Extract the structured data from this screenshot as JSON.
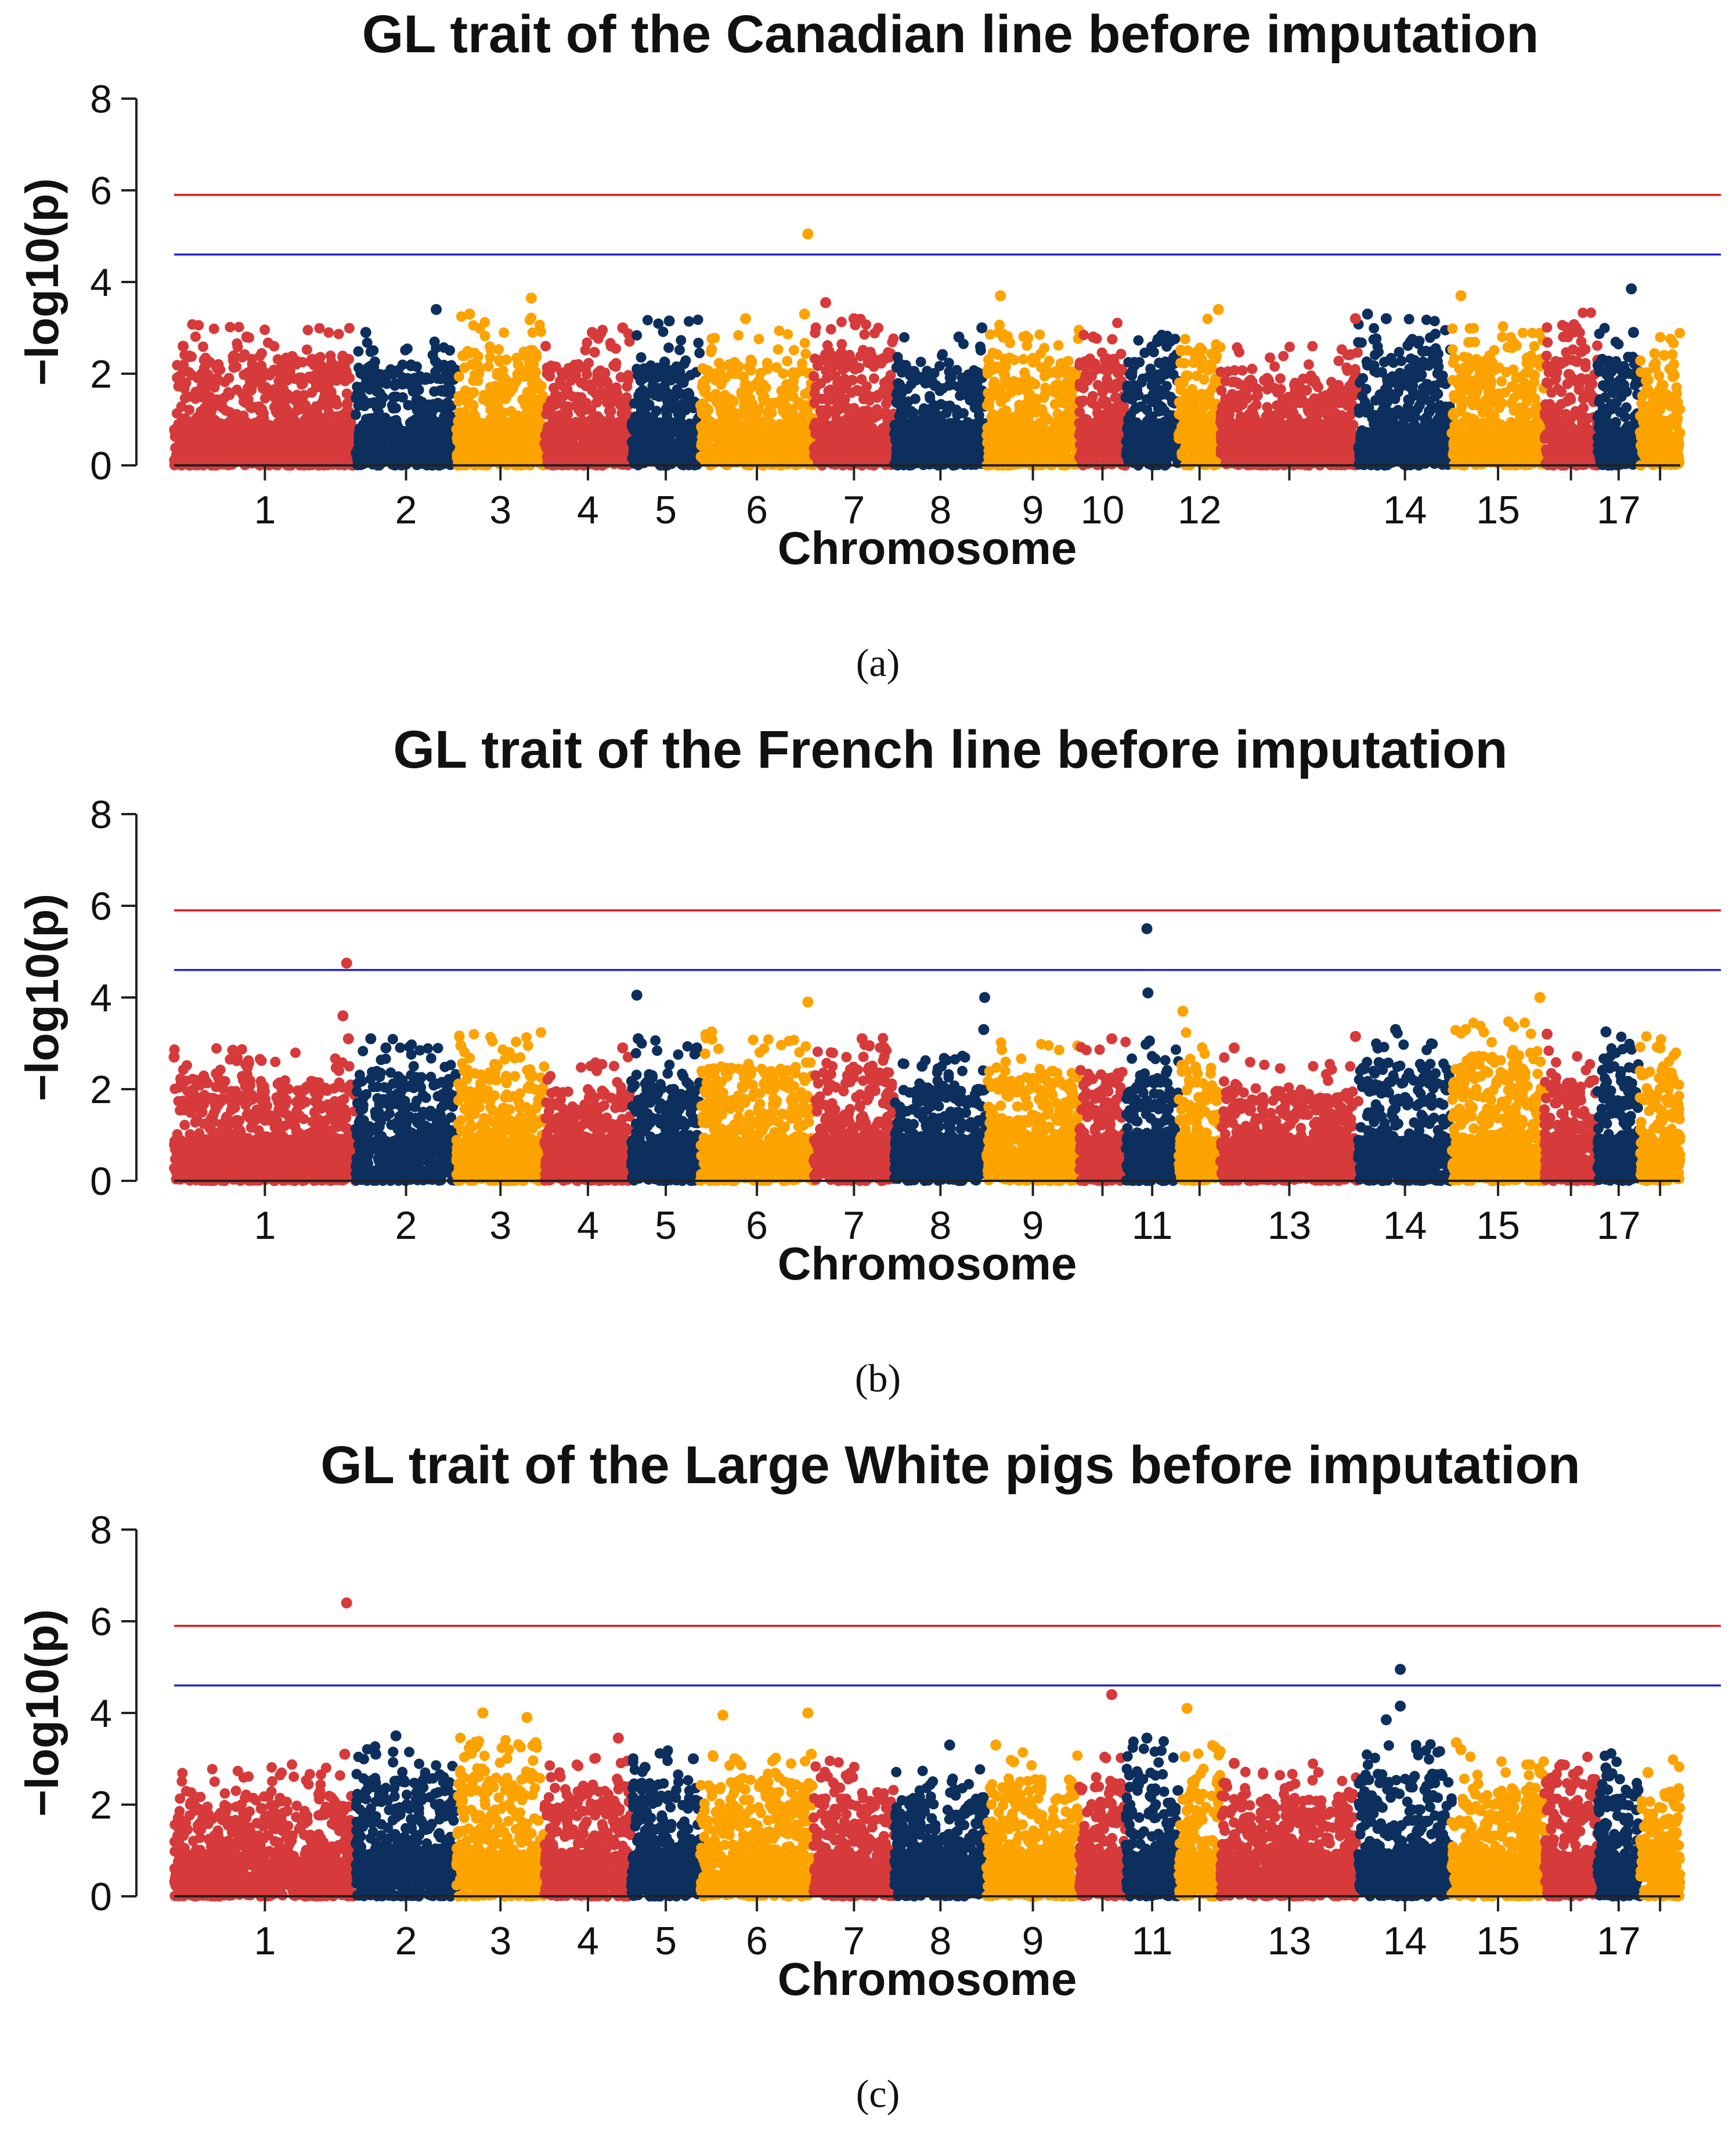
{
  "colors": {
    "red": "#d63a3a",
    "navy": "#0c2f5e",
    "orange": "#fca300",
    "genome_wide_line": "#e01818",
    "suggestive_line": "#2222cc"
  },
  "chromosome_lengths": [
    274,
    152,
    133,
    131,
    104,
    171,
    122,
    139,
    140,
    70,
    80,
    63,
    208,
    141,
    140,
    80,
    64,
    61
  ],
  "chromosome_colors": [
    "red",
    "navy",
    "orange",
    "red",
    "navy",
    "orange",
    "red",
    "navy",
    "orange",
    "red",
    "navy",
    "orange",
    "red",
    "navy",
    "orange",
    "red",
    "navy",
    "orange"
  ],
  "chart_data": [
    {
      "type": "scatter",
      "title": "GL trait of the Canadian line before imputation",
      "caption": "(a)",
      "xlabel": "Chromosome",
      "ylabel": "−log10(p)",
      "ylim": [
        0,
        8
      ],
      "yticks": [
        "0",
        "2",
        "4",
        "6",
        "8"
      ],
      "xticks": [
        "1",
        "2",
        "3",
        "4",
        "5",
        "6",
        "7",
        "8",
        "9",
        "10",
        "12",
        "14",
        "15",
        "17"
      ],
      "xtick_chromosomes": [
        1,
        2,
        3,
        4,
        5,
        6,
        7,
        8,
        9,
        10,
        12,
        14,
        15,
        17
      ],
      "thresholds": {
        "genome_wide": 5.9,
        "suggestive": 4.6
      },
      "seed": 11,
      "baseline_max": [
        2.4,
        2.2,
        2.6,
        2.3,
        2.5,
        2.3,
        2.5,
        2.1,
        2.4,
        2.5,
        2.3,
        2.6,
        1.9,
        2.5,
        2.4,
        2.7,
        2.4,
        2.2
      ],
      "highlighted_points": [
        {
          "chr": 1,
          "pos": 0.05,
          "value": 2.6
        },
        {
          "chr": 1,
          "pos": 0.4,
          "value": 2.8
        },
        {
          "chr": 2,
          "pos": 0.1,
          "value": 2.9
        },
        {
          "chr": 2,
          "pos": 0.8,
          "value": 3.4
        },
        {
          "chr": 3,
          "pos": 0.15,
          "value": 3.3
        },
        {
          "chr": 3,
          "pos": 0.85,
          "value": 3.65
        },
        {
          "chr": 4,
          "pos": 0.55,
          "value": 2.9
        },
        {
          "chr": 4,
          "pos": 0.9,
          "value": 3.0
        },
        {
          "chr": 5,
          "pos": 0.55,
          "value": 3.15
        },
        {
          "chr": 6,
          "pos": 0.4,
          "value": 3.2
        },
        {
          "chr": 6,
          "pos": 0.92,
          "value": 3.3
        },
        {
          "chr": 6,
          "pos": 0.95,
          "value": 5.05
        },
        {
          "chr": 7,
          "pos": 0.15,
          "value": 3.55
        },
        {
          "chr": 7,
          "pos": 0.5,
          "value": 3.2
        },
        {
          "chr": 8,
          "pos": 0.7,
          "value": 2.8
        },
        {
          "chr": 8,
          "pos": 0.95,
          "value": 3.0
        },
        {
          "chr": 9,
          "pos": 0.15,
          "value": 3.7
        },
        {
          "chr": 10,
          "pos": 0.3,
          "value": 2.8
        },
        {
          "chr": 11,
          "pos": 0.6,
          "value": 2.7
        },
        {
          "chr": 12,
          "pos": 0.95,
          "value": 3.4
        },
        {
          "chr": 13,
          "pos": 0.98,
          "value": 3.2
        },
        {
          "chr": 14,
          "pos": 0.1,
          "value": 3.3
        },
        {
          "chr": 14,
          "pos": 0.3,
          "value": 3.2
        },
        {
          "chr": 15,
          "pos": 0.1,
          "value": 3.7
        },
        {
          "chr": 16,
          "pos": 0.6,
          "value": 3.0
        },
        {
          "chr": 17,
          "pos": 0.8,
          "value": 3.85
        },
        {
          "chr": 17,
          "pos": 0.85,
          "value": 2.9
        },
        {
          "chr": 18,
          "pos": 0.6,
          "value": 2.4
        }
      ]
    },
    {
      "type": "scatter",
      "title": "GL trait of the French line before imputation",
      "caption": "(b)",
      "xlabel": "Chromosome",
      "ylabel": "−log10(p)",
      "ylim": [
        0,
        8
      ],
      "yticks": [
        "0",
        "2",
        "4",
        "6",
        "8"
      ],
      "xticks": [
        "1",
        "2",
        "3",
        "4",
        "5",
        "6",
        "7",
        "8",
        "9",
        "11",
        "13",
        "14",
        "15",
        "17"
      ],
      "xtick_chromosomes": [
        1,
        2,
        3,
        4,
        5,
        6,
        7,
        8,
        9,
        11,
        13,
        14,
        15,
        17
      ],
      "thresholds": {
        "genome_wide": 5.9,
        "suggestive": 4.6
      },
      "seed": 27,
      "baseline_max": [
        2.2,
        2.4,
        2.6,
        2.0,
        2.4,
        2.5,
        2.5,
        2.1,
        2.4,
        2.4,
        2.3,
        2.6,
        2.0,
        2.6,
        2.8,
        2.2,
        2.5,
        2.5
      ],
      "highlighted_points": [
        {
          "chr": 1,
          "pos": 0.0,
          "value": 2.7
        },
        {
          "chr": 1,
          "pos": 0.95,
          "value": 4.75
        },
        {
          "chr": 1,
          "pos": 0.93,
          "value": 3.6
        },
        {
          "chr": 1,
          "pos": 0.96,
          "value": 3.1
        },
        {
          "chr": 2,
          "pos": 0.15,
          "value": 3.1
        },
        {
          "chr": 2,
          "pos": 0.3,
          "value": 2.9
        },
        {
          "chr": 3,
          "pos": 0.05,
          "value": 2.95
        },
        {
          "chr": 3,
          "pos": 0.6,
          "value": 2.8
        },
        {
          "chr": 4,
          "pos": 0.9,
          "value": 2.9
        },
        {
          "chr": 5,
          "pos": 0.08,
          "value": 4.05
        },
        {
          "chr": 5,
          "pos": 0.1,
          "value": 3.1
        },
        {
          "chr": 5,
          "pos": 0.95,
          "value": 2.9
        },
        {
          "chr": 6,
          "pos": 0.1,
          "value": 3.25
        },
        {
          "chr": 6,
          "pos": 0.95,
          "value": 3.9
        },
        {
          "chr": 7,
          "pos": 0.6,
          "value": 3.1
        },
        {
          "chr": 8,
          "pos": 0.3,
          "value": 2.5
        },
        {
          "chr": 8,
          "pos": 0.98,
          "value": 4.0
        },
        {
          "chr": 8,
          "pos": 0.97,
          "value": 3.3
        },
        {
          "chr": 10,
          "pos": 0.7,
          "value": 3.1
        },
        {
          "chr": 11,
          "pos": 0.4,
          "value": 5.5
        },
        {
          "chr": 11,
          "pos": 0.42,
          "value": 4.1
        },
        {
          "chr": 11,
          "pos": 0.45,
          "value": 3.05
        },
        {
          "chr": 12,
          "pos": 0.1,
          "value": 3.7
        },
        {
          "chr": 13,
          "pos": 0.1,
          "value": 2.9
        },
        {
          "chr": 13,
          "pos": 0.98,
          "value": 3.15
        },
        {
          "chr": 14,
          "pos": 0.4,
          "value": 3.3
        },
        {
          "chr": 15,
          "pos": 0.15,
          "value": 3.3
        },
        {
          "chr": 15,
          "pos": 0.95,
          "value": 4.0
        },
        {
          "chr": 16,
          "pos": 0.05,
          "value": 3.2
        },
        {
          "chr": 17,
          "pos": 0.2,
          "value": 3.25
        },
        {
          "chr": 18,
          "pos": 0.5,
          "value": 2.9
        }
      ]
    },
    {
      "type": "scatter",
      "title": "GL trait of the Large White pigs before imputation",
      "caption": "(c)",
      "xlabel": "Chromosome",
      "ylabel": "−log10(p)",
      "ylim": [
        0,
        8
      ],
      "yticks": [
        "0",
        "2",
        "4",
        "6",
        "8"
      ],
      "xticks": [
        "1",
        "2",
        "3",
        "4",
        "5",
        "6",
        "7",
        "8",
        "9",
        "11",
        "13",
        "14",
        "15",
        "17"
      ],
      "xtick_chromosomes": [
        1,
        2,
        3,
        4,
        5,
        6,
        7,
        8,
        9,
        11,
        13,
        14,
        15,
        17
      ],
      "thresholds": {
        "genome_wide": 5.9,
        "suggestive": 4.6
      },
      "seed": 53,
      "baseline_max": [
        2.2,
        2.6,
        2.8,
        2.4,
        2.5,
        2.5,
        2.4,
        2.2,
        2.5,
        2.6,
        2.7,
        2.6,
        2.2,
        2.7,
        2.4,
        2.6,
        2.5,
        2.3
      ],
      "highlighted_points": [
        {
          "chr": 1,
          "pos": 0.95,
          "value": 6.4
        },
        {
          "chr": 1,
          "pos": 0.94,
          "value": 3.1
        },
        {
          "chr": 2,
          "pos": 0.2,
          "value": 3.1
        },
        {
          "chr": 2,
          "pos": 0.4,
          "value": 3.5
        },
        {
          "chr": 3,
          "pos": 0.3,
          "value": 4.0
        },
        {
          "chr": 3,
          "pos": 0.8,
          "value": 3.9
        },
        {
          "chr": 3,
          "pos": 0.9,
          "value": 3.35
        },
        {
          "chr": 4,
          "pos": 0.85,
          "value": 3.45
        },
        {
          "chr": 5,
          "pos": 0.5,
          "value": 3.1
        },
        {
          "chr": 5,
          "pos": 0.9,
          "value": 3.0
        },
        {
          "chr": 6,
          "pos": 0.2,
          "value": 3.95
        },
        {
          "chr": 6,
          "pos": 0.95,
          "value": 4.0
        },
        {
          "chr": 6,
          "pos": 0.98,
          "value": 3.1
        },
        {
          "chr": 8,
          "pos": 0.6,
          "value": 3.3
        },
        {
          "chr": 9,
          "pos": 0.1,
          "value": 3.3
        },
        {
          "chr": 10,
          "pos": 0.7,
          "value": 4.4
        },
        {
          "chr": 11,
          "pos": 0.4,
          "value": 3.45
        },
        {
          "chr": 12,
          "pos": 0.2,
          "value": 4.1
        },
        {
          "chr": 12,
          "pos": 0.15,
          "value": 3.05
        },
        {
          "chr": 13,
          "pos": 0.1,
          "value": 2.9
        },
        {
          "chr": 14,
          "pos": 0.45,
          "value": 4.95
        },
        {
          "chr": 14,
          "pos": 0.45,
          "value": 4.15
        },
        {
          "chr": 14,
          "pos": 0.3,
          "value": 3.85
        },
        {
          "chr": 15,
          "pos": 0.05,
          "value": 3.35
        },
        {
          "chr": 15,
          "pos": 0.1,
          "value": 3.2
        },
        {
          "chr": 17,
          "pos": 0.2,
          "value": 2.8
        },
        {
          "chr": 18,
          "pos": 0.2,
          "value": 2.7
        }
      ]
    }
  ]
}
